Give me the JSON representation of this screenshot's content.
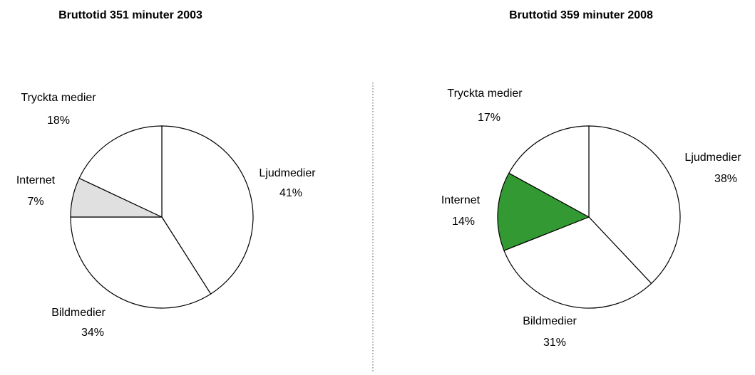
{
  "chart_data": [
    {
      "type": "pie",
      "title": "Bruttotid 351 minuter 2003",
      "categories": [
        "Ljudmedier",
        "Bildmedier",
        "Internet",
        "Tryckta medier"
      ],
      "values": [
        41,
        34,
        7,
        18
      ],
      "value_labels": [
        "41%",
        "34%",
        "7%",
        "18%"
      ],
      "colors": [
        "#ffffff",
        "#ffffff",
        "#e0e0e0",
        "#ffffff"
      ]
    },
    {
      "type": "pie",
      "title": "Bruttotid 359 minuter 2008",
      "categories": [
        "Ljudmedier",
        "Bildmedier",
        "Internet",
        "Tryckta medier"
      ],
      "values": [
        38,
        31,
        14,
        17
      ],
      "value_labels": [
        "38%",
        "31%",
        "14%",
        "17%"
      ],
      "colors": [
        "#ffffff",
        "#ffffff",
        "#339933",
        "#ffffff"
      ]
    }
  ]
}
